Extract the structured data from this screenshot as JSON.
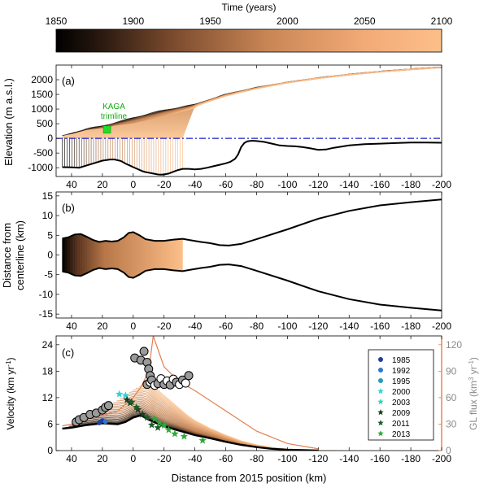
{
  "colorbar": {
    "title": "Time (years)",
    "ticks": [
      "1850",
      "1900",
      "1950",
      "2000",
      "2050",
      "2100"
    ],
    "range": [
      1850,
      2100
    ],
    "start_color": "#000000",
    "end_color": "#fdbf8a"
  },
  "colors": {
    "bed": "#000000",
    "sea_level": "#1a1acc",
    "marker_green": "#22dd22",
    "label_green": "#11aa11",
    "flux_axis": "#e08050"
  },
  "chart_data": [
    {
      "panel_label": "(a)",
      "type": "line",
      "ylabel": "Elevation (m a.s.l.)",
      "xlim": [
        50,
        -200
      ],
      "ylim": [
        -1300,
        2500
      ],
      "x_tick_labels": [
        "40",
        "20",
        "0",
        "-20",
        "-40",
        "-60",
        "-80",
        "-100",
        "-120",
        "-140",
        "-160",
        "-180",
        "-200"
      ],
      "y_tick_labels": [
        "2000",
        "1500",
        "1000",
        "500",
        "0",
        "-500",
        "-1000"
      ],
      "annotation": {
        "text_line1": "KAGA",
        "text_line2": "trimline",
        "x": 17,
        "y": 300
      },
      "bed": {
        "x": [
          46,
          40,
          35,
          30,
          25,
          20,
          15,
          12,
          8,
          5,
          2,
          0,
          -3,
          -6,
          -8,
          -10,
          -13,
          -16,
          -18,
          -20,
          -23,
          -26,
          -29,
          -32,
          -36,
          -40,
          -44,
          -48,
          -52,
          -56,
          -60,
          -63,
          -66,
          -68,
          -70,
          -72,
          -74,
          -77,
          -80,
          -85,
          -90,
          -95,
          -100,
          -105,
          -110,
          -115,
          -120,
          -125,
          -130,
          -135,
          -140,
          -150,
          -160,
          -170,
          -180,
          -190,
          -200
        ],
        "elevation": [
          -980,
          -990,
          -1000,
          -920,
          -840,
          -760,
          -720,
          -720,
          -770,
          -860,
          -930,
          -980,
          -1050,
          -1120,
          -1150,
          -1170,
          -1200,
          -1230,
          -1240,
          -1230,
          -1200,
          -1140,
          -1080,
          -1040,
          -1040,
          -1060,
          -1040,
          -1000,
          -950,
          -900,
          -850,
          -800,
          -700,
          -550,
          -300,
          -160,
          -100,
          -80,
          -90,
          -120,
          -180,
          -240,
          -260,
          -270,
          -300,
          -340,
          -390,
          -380,
          -320,
          -280,
          -240,
          -200,
          -180,
          -160,
          -140,
          -140,
          -150
        ]
      },
      "surface_final": {
        "x": [
          -40,
          -60,
          -80,
          -100,
          -120,
          -140,
          -160,
          -180,
          -200
        ],
        "elevation": [
          1100,
          1450,
          1700,
          1900,
          2050,
          2170,
          2270,
          2350,
          2420
        ]
      },
      "surface_initial": {
        "x": [
          46,
          40,
          30,
          20,
          10,
          0,
          -10,
          -20,
          -30,
          -40,
          -60,
          -80,
          -100,
          -120,
          -140,
          -160,
          -180,
          -200
        ],
        "elevation": [
          80,
          170,
          330,
          420,
          560,
          700,
          840,
          960,
          1060,
          1150,
          1500,
          1730,
          1910,
          2060,
          2180,
          2280,
          2360,
          2430
        ]
      },
      "sea_level": 0
    },
    {
      "panel_label": "(b)",
      "type": "line",
      "ylabel_line1": "Distance from",
      "ylabel_line2": "centerline (km)",
      "xlim": [
        50,
        -200
      ],
      "ylim": [
        -16,
        16
      ],
      "x_tick_labels": [
        "40",
        "20",
        "0",
        "-20",
        "-40",
        "-60",
        "-80",
        "-100",
        "-120",
        "-140",
        "-160",
        "-180",
        "-200"
      ],
      "y_tick_labels": [
        "15",
        "10",
        "5",
        "0",
        "-5",
        "-10",
        "-15"
      ],
      "width": {
        "x": [
          46,
          42,
          38,
          34,
          30,
          26,
          22,
          18,
          14,
          10,
          6,
          3,
          0,
          -4,
          -8,
          -14,
          -20,
          -26,
          -32,
          -38,
          -44,
          -50,
          -56,
          -62,
          -70,
          -80,
          -100,
          -120,
          -140,
          -160,
          -180,
          -200
        ],
        "half_width": [
          4.2,
          4.5,
          5.2,
          5.3,
          4.6,
          3.8,
          3.3,
          3.6,
          3.4,
          3.6,
          4.5,
          5.6,
          5.8,
          5.0,
          4.0,
          3.6,
          3.6,
          3.9,
          4.1,
          3.7,
          3.3,
          3.0,
          2.5,
          2.4,
          2.8,
          4.0,
          6.5,
          9.2,
          11.2,
          12.6,
          13.4,
          14.1
        ]
      },
      "retreat_x": [
        46,
        -32
      ]
    },
    {
      "panel_label": "(c)",
      "type": "scatter",
      "xlabel": "Distance from 2015 position (km)",
      "ylabel": "Velocity (km yr",
      "ylabel_exp": "-1",
      "ylabel_close": ")",
      "y2label": "GL flux (km",
      "y2label_exp1": "3",
      "y2label_mid": " yr",
      "y2label_exp2": "-1",
      "y2label_close": ")",
      "xlim": [
        50,
        -200
      ],
      "ylim": [
        0,
        26
      ],
      "y2lim": [
        0,
        130
      ],
      "x_tick_labels": [
        "40",
        "20",
        "0",
        "-20",
        "-40",
        "-60",
        "-80",
        "-100",
        "-120",
        "-140",
        "-160",
        "-180",
        "-200"
      ],
      "y_tick_labels": [
        "24",
        "18",
        "12",
        "6",
        "0"
      ],
      "y2_tick_labels": [
        "120",
        "90",
        "60",
        "30",
        "0"
      ],
      "legend": [
        {
          "year": "1985",
          "color": "#1f3f9f",
          "shape": "dot"
        },
        {
          "year": "1992",
          "color": "#2f77c8",
          "shape": "dot"
        },
        {
          "year": "1995",
          "color": "#2a9ab5",
          "shape": "dot"
        },
        {
          "year": "2000",
          "color": "#33d0d8",
          "shape": "star"
        },
        {
          "year": "2003",
          "color": "#2ad4b8",
          "shape": "star"
        },
        {
          "year": "2009",
          "color": "#1a3a22",
          "shape": "star"
        },
        {
          "year": "2011",
          "color": "#1c5a28",
          "shape": "star"
        },
        {
          "year": "2013",
          "color": "#2ea83a",
          "shape": "star"
        }
      ],
      "observed_gray": {
        "x": [
          37,
          35,
          32,
          28,
          24,
          20,
          18,
          16,
          -1,
          -5,
          -7,
          -9,
          -10,
          -11
        ],
        "velocity": [
          6.5,
          7.0,
          7.5,
          8.2,
          8.5,
          9.2,
          9.8,
          10.2,
          21.0,
          20.5,
          22.5,
          20.0,
          18.5,
          17.0
        ]
      },
      "observed_black_open": {
        "x": [
          -9,
          -11,
          -12,
          -14,
          -16,
          -18,
          -20,
          -22,
          -24,
          -26,
          -28,
          -30,
          -32,
          -34,
          -36
        ],
        "velocity": [
          15.0,
          15.5,
          16.0,
          14.8,
          15.2,
          16.3,
          15.0,
          15.8,
          14.9,
          16.2,
          15.5,
          15.0,
          16.0,
          15.3,
          17.0
        ]
      },
      "obs_2000": {
        "x": [
          9,
          5
        ],
        "velocity": [
          12.8,
          12.5
        ]
      },
      "obs_2009": {
        "x": [
          4,
          2,
          -3,
          -6
        ],
        "velocity": [
          11.5,
          10.8,
          9.3,
          8.2
        ]
      },
      "obs_2011": {
        "x": [
          1,
          -2,
          -9,
          -12,
          -16
        ],
        "velocity": [
          11.0,
          9.8,
          7.5,
          5.8,
          5.2
        ]
      },
      "obs_2013": {
        "x": [
          -14,
          -17,
          -20,
          -23,
          -27,
          -33,
          -45
        ],
        "velocity": [
          7.2,
          6.3,
          5.7,
          4.7,
          3.8,
          3.2,
          2.3
        ]
      },
      "obs_1985": {
        "x": [
          22,
          20
        ],
        "velocity": [
          6.3,
          6.8
        ]
      },
      "obs_1992": {
        "x": [
          18
        ],
        "velocity": [
          6.6
        ]
      },
      "model_velocity_initial": {
        "x": [
          46,
          40,
          30,
          20,
          10,
          5,
          0,
          -5,
          -10,
          -20,
          -30,
          -40,
          -50,
          -60,
          -70,
          -80,
          -90,
          -100,
          -110,
          -120
        ],
        "velocity": [
          5.0,
          5.2,
          5.8,
          6.2,
          6.0,
          6.5,
          7.5,
          8.0,
          7.0,
          5.5,
          4.5,
          3.5,
          2.8,
          2.0,
          1.3,
          0.8,
          0.4,
          0.2,
          0.1,
          0.0
        ]
      },
      "model_velocity_final": {
        "x": [
          -10,
          -15,
          -20,
          -25,
          -30,
          -35,
          -40,
          -50,
          -60,
          -70,
          -80,
          -90,
          -100,
          -110,
          -120
        ],
        "velocity": [
          16.0,
          14.0,
          12.5,
          11.0,
          9.5,
          8.0,
          6.8,
          5.0,
          3.5,
          2.2,
          1.3,
          0.7,
          0.3,
          0.1,
          0.0
        ]
      },
      "gl_flux": {
        "x": [
          46,
          40,
          30,
          20,
          10,
          0,
          -5,
          -10,
          -13,
          -20,
          -30,
          -40,
          -60,
          -80,
          -100,
          -120
        ],
        "flux": [
          28,
          30,
          36,
          40,
          45,
          60,
          72,
          90,
          130,
          95,
          78,
          68,
          45,
          22,
          8,
          2
        ]
      }
    }
  ]
}
